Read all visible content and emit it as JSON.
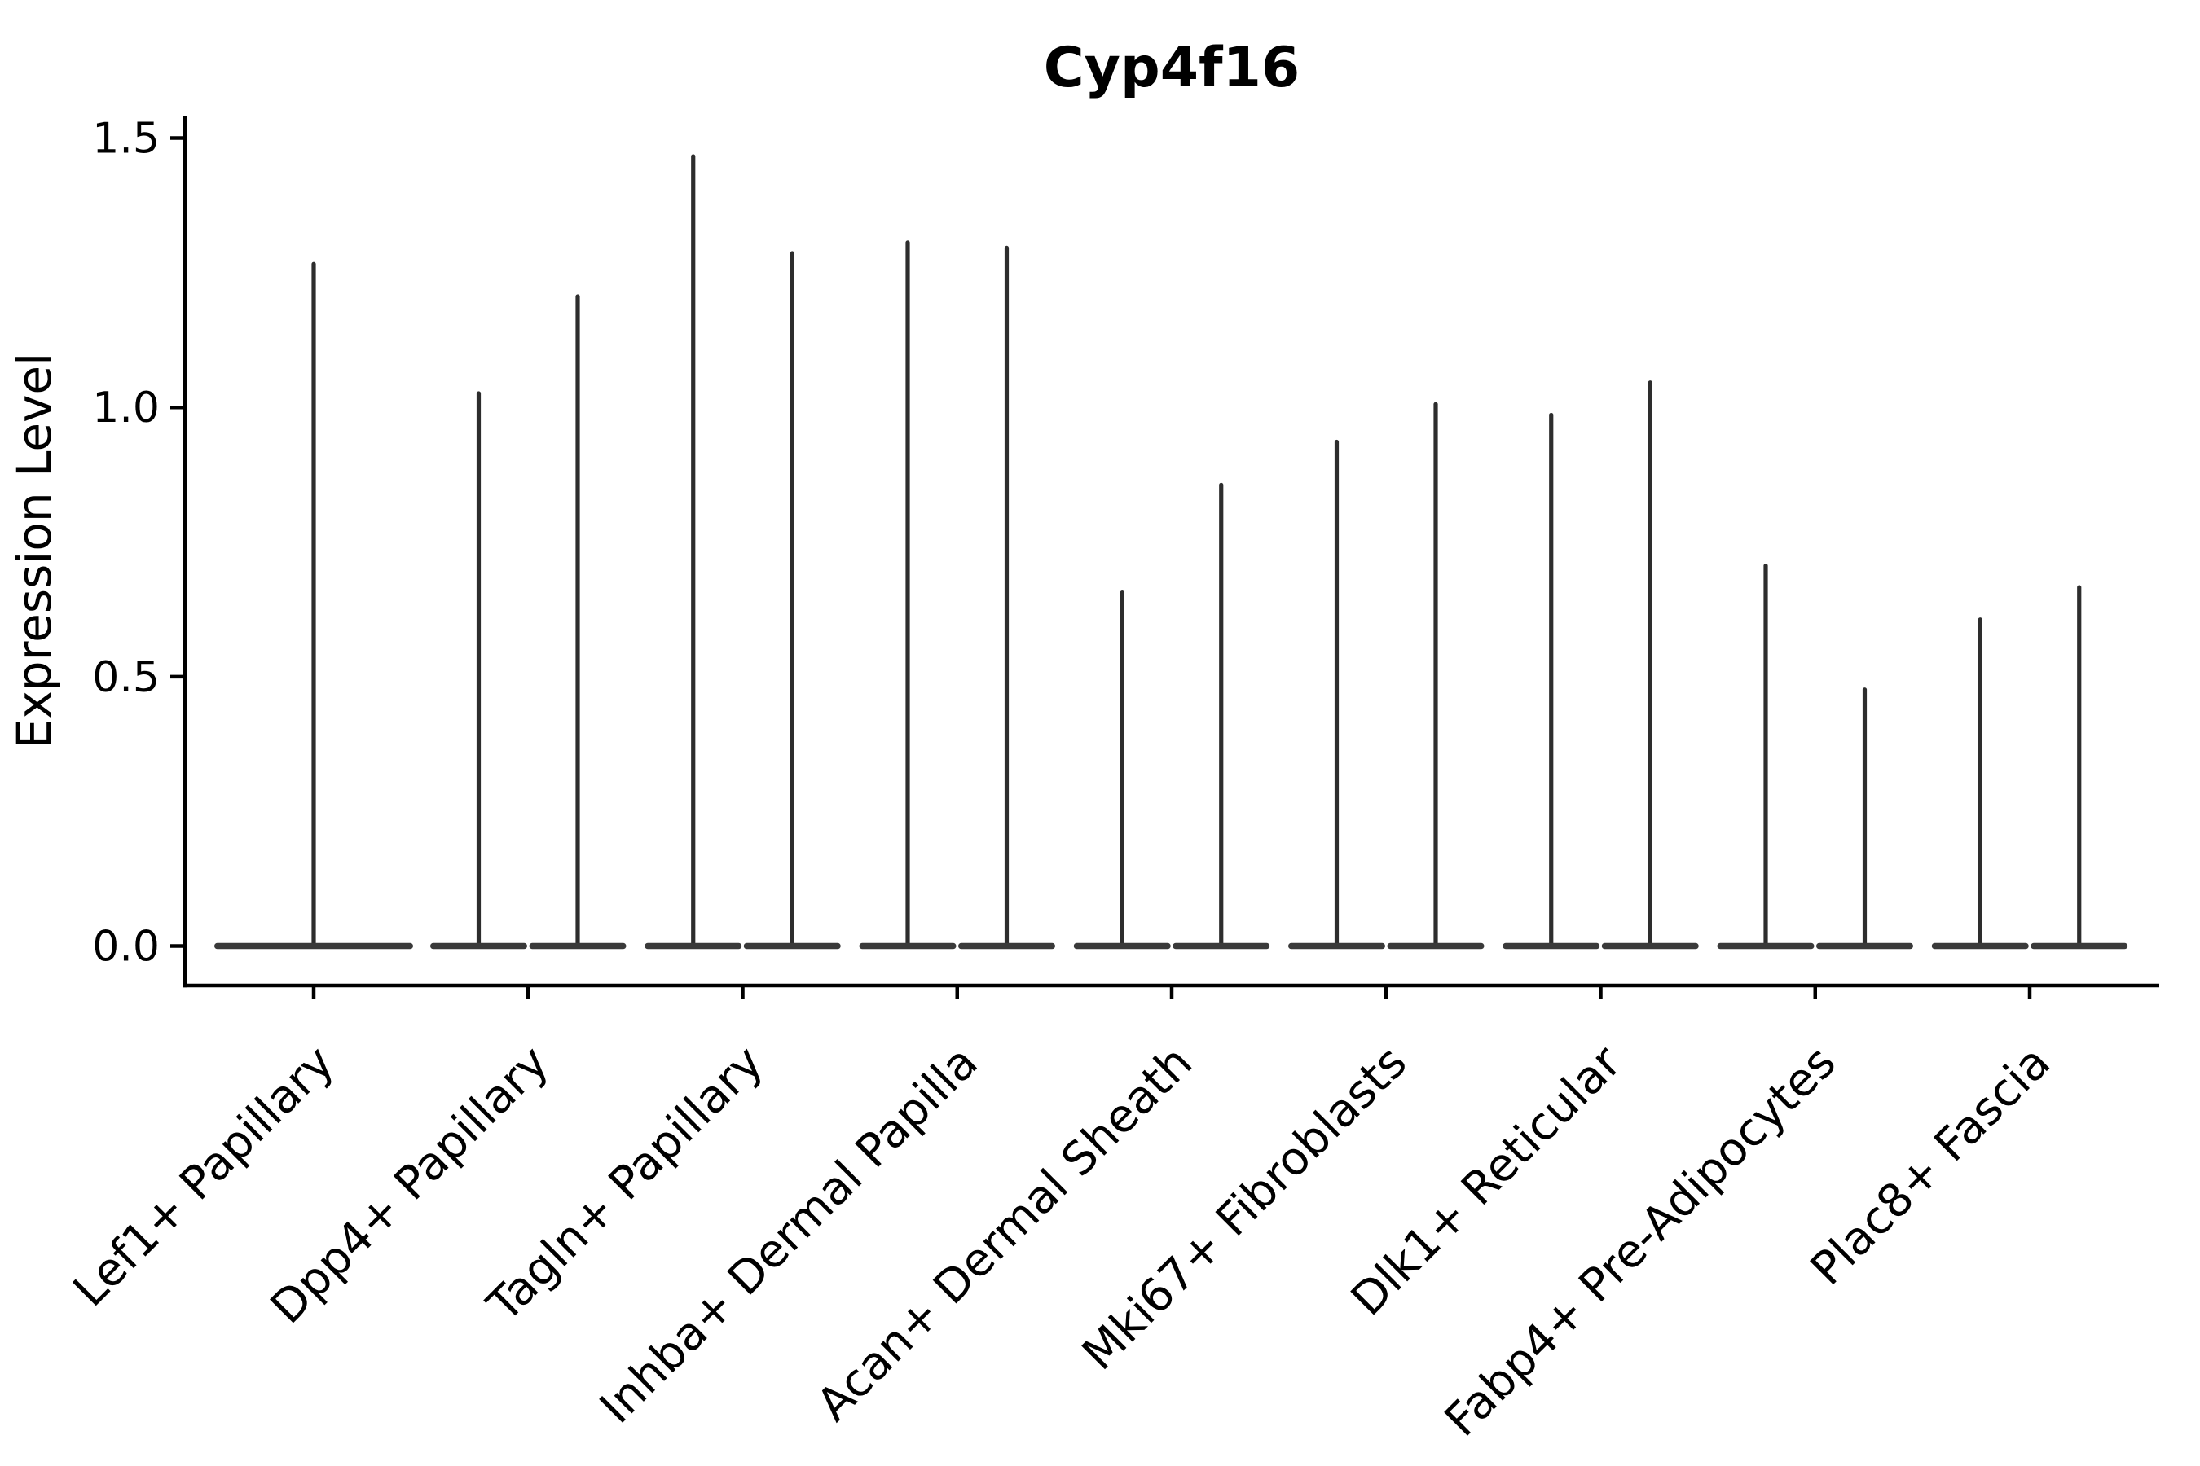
{
  "figure": {
    "background": "#ffffff"
  },
  "chart_data": {
    "type": "violin",
    "title": "Cyp4f16",
    "xlabel": "",
    "ylabel": "Expression Level",
    "yticks": [
      0.0,
      0.5,
      1.0,
      1.5
    ],
    "ylim": [
      -0.07,
      1.54
    ],
    "grid": false,
    "legend": null,
    "x_tick_rotation": 45,
    "style": "collapsed violins: wide flat density at 0 with a thin spike rising to the max expression; categories 2-9 each contain two side-by-side violins, category 1 a single full-width violin",
    "categories": [
      "Lef1+ Papillary",
      "Dpp4+ Papillary",
      "Tagln+ Papillary",
      "Inhba+ Dermal Papilla",
      "Acan+ Dermal Sheath",
      "Mki67+ Fibroblasts",
      "Dlk1+ Reticular",
      "Fabp4+ Pre-Adipocytes",
      "Plac8+ Fascia"
    ],
    "violins": [
      {
        "category": "Lef1+ Papillary",
        "peaks": [
          1.27
        ]
      },
      {
        "category": "Dpp4+ Papillary",
        "peaks": [
          1.03,
          1.21
        ]
      },
      {
        "category": "Tagln+ Papillary",
        "peaks": [
          1.47,
          1.29
        ]
      },
      {
        "category": "Inhba+ Dermal Papilla",
        "peaks": [
          1.31,
          1.3
        ]
      },
      {
        "category": "Acan+ Dermal Sheath",
        "peaks": [
          0.66,
          0.86
        ]
      },
      {
        "category": "Mki67+ Fibroblasts",
        "peaks": [
          0.94,
          1.01
        ]
      },
      {
        "category": "Dlk1+ Reticular",
        "peaks": [
          0.99,
          1.05
        ]
      },
      {
        "category": "Fabp4+ Pre-Adipocytes",
        "peaks": [
          0.71,
          0.48
        ]
      },
      {
        "category": "Plac8+ Fascia",
        "peaks": [
          0.61,
          0.67
        ]
      }
    ],
    "colors": {
      "violin_spike": "#2d2d2d",
      "violin_base": "#3a3a3a",
      "axis": "#000000",
      "text": "#000000"
    }
  }
}
